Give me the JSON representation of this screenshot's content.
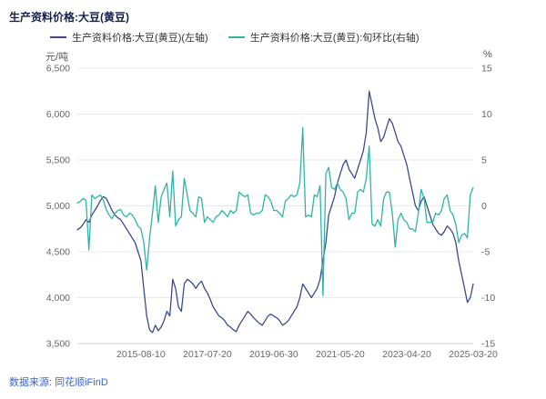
{
  "header": {
    "title": "生产资料价格:大豆(黄豆)"
  },
  "legend": {
    "items": [
      {
        "label": "生产资料价格:大豆(黄豆)(左轴)",
        "color": "#3c4a8f"
      },
      {
        "label": "生产资料价格:大豆(黄豆):旬环比(右轴)",
        "color": "#2eb5a8"
      }
    ]
  },
  "footer": {
    "source": "数据来源: 同花顺iFinD"
  },
  "chart_data": {
    "type": "line",
    "title": "生产资料价格:大豆(黄豆)",
    "grid": "horizontal",
    "legend_position": "top",
    "x_months": [
      "2013-10",
      "2013-11",
      "2013-12",
      "2014-01",
      "2014-02",
      "2014-03",
      "2014-04",
      "2014-05",
      "2014-06",
      "2014-07",
      "2014-08",
      "2014-09",
      "2014-10",
      "2014-11",
      "2014-12",
      "2015-01",
      "2015-02",
      "2015-03",
      "2015-04",
      "2015-05",
      "2015-06",
      "2015-07",
      "2015-08",
      "2015-09",
      "2015-10",
      "2015-11",
      "2015-12",
      "2016-01",
      "2016-02",
      "2016-03",
      "2016-04",
      "2016-05",
      "2016-06",
      "2016-07",
      "2016-08",
      "2016-09",
      "2016-10",
      "2016-11",
      "2016-12",
      "2017-01",
      "2017-02",
      "2017-03",
      "2017-04",
      "2017-05",
      "2017-06",
      "2017-07",
      "2017-08",
      "2017-09",
      "2017-10",
      "2017-11",
      "2017-12",
      "2018-01",
      "2018-02",
      "2018-03",
      "2018-04",
      "2018-05",
      "2018-06",
      "2018-07",
      "2018-08",
      "2018-09",
      "2018-10",
      "2018-11",
      "2018-12",
      "2019-01",
      "2019-02",
      "2019-03",
      "2019-04",
      "2019-05",
      "2019-06",
      "2019-07",
      "2019-08",
      "2019-09",
      "2019-10",
      "2019-11",
      "2019-12",
      "2020-01",
      "2020-02",
      "2020-03",
      "2020-04",
      "2020-05",
      "2020-06",
      "2020-07",
      "2020-08",
      "2020-09",
      "2020-10",
      "2020-11",
      "2020-12",
      "2021-01",
      "2021-02",
      "2021-03",
      "2021-04",
      "2021-05",
      "2021-06",
      "2021-07",
      "2021-08",
      "2021-09",
      "2021-10",
      "2021-11",
      "2021-12",
      "2022-01",
      "2022-02",
      "2022-03",
      "2022-04",
      "2022-05",
      "2022-06",
      "2022-07",
      "2022-08",
      "2022-09",
      "2022-10",
      "2022-11",
      "2022-12",
      "2023-01",
      "2023-02",
      "2023-03",
      "2023-04",
      "2023-05",
      "2023-06",
      "2023-07",
      "2023-08",
      "2023-09",
      "2023-10",
      "2023-11",
      "2023-12",
      "2024-01",
      "2024-02",
      "2024-03",
      "2024-04",
      "2024-05",
      "2024-06",
      "2024-07",
      "2024-08",
      "2024-09",
      "2024-10",
      "2024-11",
      "2024-12",
      "2025-01",
      "2025-02",
      "2025-03"
    ],
    "series": [
      {
        "name": "生产资料价格:大豆(黄豆)(左轴)",
        "axis": "left",
        "color": "#3c4a8f",
        "values": [
          4740,
          4760,
          4800,
          4850,
          4820,
          4900,
          4950,
          5000,
          5060,
          5100,
          5080,
          5020,
          4950,
          4900,
          4870,
          4850,
          4800,
          4750,
          4700,
          4650,
          4600,
          4500,
          4400,
          4100,
          3800,
          3650,
          3620,
          3700,
          3640,
          3680,
          3750,
          3850,
          3800,
          4200,
          4100,
          3900,
          3850,
          4150,
          4200,
          4180,
          4150,
          4100,
          4150,
          4180,
          4100,
          4050,
          3980,
          3900,
          3850,
          3800,
          3780,
          3750,
          3700,
          3680,
          3650,
          3630,
          3700,
          3750,
          3800,
          3850,
          3820,
          3780,
          3750,
          3720,
          3700,
          3750,
          3800,
          3820,
          3800,
          3780,
          3750,
          3700,
          3720,
          3750,
          3800,
          3850,
          3900,
          4000,
          4150,
          4100,
          4050,
          4000,
          4050,
          4100,
          4200,
          4400,
          4600,
          4900,
          5000,
          5100,
          5250,
          5350,
          5450,
          5500,
          5400,
          5350,
          5300,
          5400,
          5500,
          5600,
          5800,
          6250,
          6100,
          5950,
          5850,
          5700,
          5750,
          5850,
          5950,
          5900,
          5800,
          5700,
          5650,
          5550,
          5450,
          5300,
          5150,
          5000,
          4950,
          5050,
          5100,
          5000,
          4900,
          4800,
          4750,
          4700,
          4680,
          4720,
          4780,
          4750,
          4700,
          4600,
          4400,
          4250,
          4100,
          3950,
          4000,
          4150
        ]
      },
      {
        "name": "生产资料价格:大豆(黄豆):旬环比(右轴)",
        "axis": "right",
        "color": "#2eb5a8",
        "values": [
          0.3,
          0.5,
          0.8,
          0.6,
          -4.8,
          1.2,
          0.8,
          1.0,
          1.2,
          0.6,
          -0.4,
          -1.0,
          -1.4,
          -0.8,
          -0.5,
          -0.4,
          -1.0,
          -1.2,
          -0.8,
          -1.0,
          -1.5,
          -2.2,
          -2.5,
          -4.0,
          -7.0,
          -3.5,
          -0.8,
          2.2,
          -1.8,
          1.0,
          1.8,
          2.5,
          -1.2,
          3.8,
          -2.2,
          -1.5,
          -1.2,
          3.0,
          1.2,
          -0.5,
          -0.8,
          -1.2,
          1.0,
          0.8,
          -1.8,
          -1.2,
          -1.5,
          -1.8,
          -1.2,
          -1.0,
          -0.5,
          -0.8,
          -1.2,
          -0.5,
          -0.8,
          -0.5,
          1.5,
          1.2,
          1.0,
          1.2,
          -0.8,
          -1.0,
          -0.8,
          -0.8,
          -0.5,
          1.2,
          1.0,
          0.5,
          -0.5,
          -0.5,
          -0.8,
          -1.2,
          0.5,
          0.8,
          1.2,
          1.0,
          1.2,
          2.5,
          8.5,
          -1.2,
          -1.0,
          -1.2,
          1.2,
          1.0,
          2.2,
          -9.8,
          3.5,
          4.2,
          2.0,
          1.8,
          2.5,
          1.8,
          1.5,
          0.8,
          -1.5,
          -0.8,
          -0.8,
          1.5,
          1.8,
          1.5,
          3.0,
          6.5,
          -2.0,
          -2.2,
          -1.5,
          -2.2,
          0.8,
          1.5,
          1.5,
          -0.8,
          -4.5,
          -1.5,
          -0.8,
          -1.5,
          -1.8,
          -2.5,
          -2.5,
          -2.8,
          -0.8,
          1.8,
          0.8,
          -1.8,
          -1.8,
          -1.8,
          -0.8,
          -1.0,
          -0.5,
          0.8,
          1.2,
          -0.5,
          -1.0,
          -2.0,
          -4.0,
          -3.2,
          -3.0,
          -3.5,
          1.2,
          2.0
        ]
      }
    ],
    "left_axis": {
      "unit": "元/吨",
      "min": 3500,
      "max": 6500,
      "ticks": [
        "6,500",
        "6,000",
        "5,500",
        "5,000",
        "4,500",
        "4,000",
        "3,500"
      ]
    },
    "right_axis": {
      "unit": "%",
      "min": -15,
      "max": 15,
      "ticks": [
        "15",
        "10",
        "5",
        "0",
        "-5",
        "-10",
        "-15"
      ]
    },
    "x_axis": {
      "tick_labels": [
        "2015-08-10",
        "2017-07-20",
        "2019-06-30",
        "2021-05-20",
        "2023-04-20",
        "2025-03-20"
      ],
      "tick_indices": [
        22,
        45,
        68,
        91,
        114,
        137
      ]
    }
  }
}
